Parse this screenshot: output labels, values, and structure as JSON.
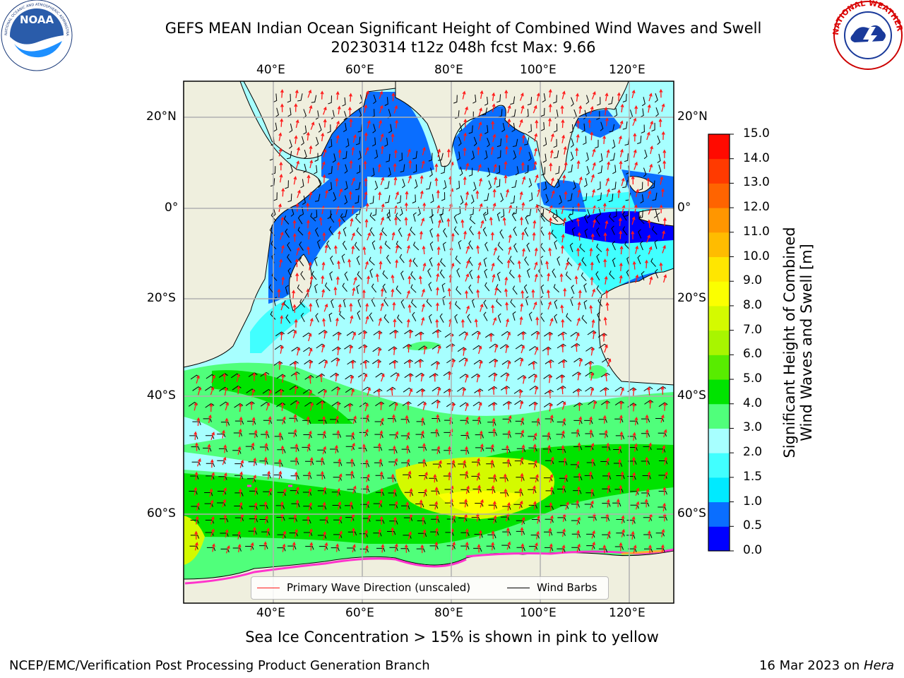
{
  "header": {
    "title_line1": "GEFS MEAN Indian Ocean Significant Height of Combined Wind Waves and Swell",
    "title_line2": "20230314 t12z 048h fcst   Max: 9.66",
    "left_logo": "NOAA",
    "left_logo_ring_text": "NATIONAL OCEANIC AND ATMOSPHERIC ADMINISTRATION · U.S. DEPARTMENT OF COMMERCE",
    "right_logo_ring_text": "NATIONAL WEATHER SERVICE"
  },
  "map": {
    "lon_range": [
      20,
      130
    ],
    "lat_range": [
      -72,
      28
    ],
    "lon_ticks": [
      "40°E",
      "60°E",
      "80°E",
      "100°E",
      "120°E"
    ],
    "lat_ticks": [
      "20°N",
      "0°",
      "20°S",
      "40°S",
      "60°S"
    ],
    "colors": {
      "land": "#efefde",
      "grid": "#b0b0b0",
      "wave_direction": "#ff1a1a",
      "wind_barb": "#000000",
      "sea_ice": "#ff33cc"
    }
  },
  "legend": {
    "primary_wave_label": "Primary Wave Direction (unscaled)",
    "wind_barbs_label": "Wind Barbs"
  },
  "colorbar": {
    "label_line1": "Significant Height of Combined",
    "label_line2": "Wind Waves and Swell [m]",
    "levels": [
      "0.0",
      "0.5",
      "1.0",
      "1.5",
      "2.0",
      "3.0",
      "4.0",
      "5.0",
      "6.0",
      "7.0",
      "8.0",
      "9.0",
      "10.0",
      "11.0",
      "12.0",
      "13.0",
      "14.0",
      "15.0"
    ],
    "colors": [
      "#0000ff",
      "#0a6eff",
      "#00eaff",
      "#41ffff",
      "#a7ffff",
      "#50ff7b",
      "#00e300",
      "#58ec00",
      "#a8f500",
      "#d4fa00",
      "#fbff00",
      "#ffe600",
      "#ffbc00",
      "#ff9600",
      "#ff6400",
      "#ff3a00",
      "#ff0a00"
    ]
  },
  "footer": {
    "caption": "Sea Ice Concentration > 15% is shown in pink to yellow",
    "credit": "NCEP/EMC/Verification Post Processing Product Generation Branch",
    "date": "16 Mar 2023 on ",
    "machine": "Hera"
  }
}
